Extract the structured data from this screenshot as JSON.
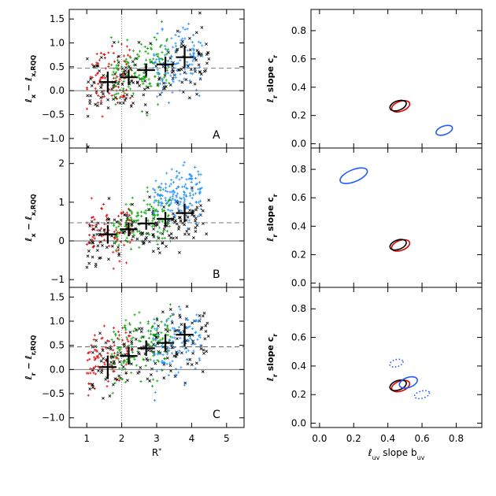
{
  "chart_data": [
    {
      "type": "scatter",
      "panel_label": "A",
      "xlabel": "",
      "ylabel": "ℓx − ℓx,RQQ",
      "ylabel_parts": [
        "ℓ",
        "x",
        " − ℓ",
        "x,RQQ"
      ],
      "xlim": [
        0.5,
        5.5
      ],
      "ylim": [
        -1.2,
        1.7
      ],
      "yticks": [
        -1.0,
        -0.5,
        0.0,
        0.5,
        1.0,
        1.5
      ],
      "ytick_labels": [
        "−1.0",
        "−0.5",
        "0.0",
        "0.5",
        "1.0",
        "1.5"
      ],
      "xticks": [
        1,
        2,
        3,
        4,
        5
      ],
      "vline_dotted": 2.0,
      "hline_dashed": 0.47,
      "hline_solid": 0.0,
      "binned_means": {
        "x": [
          1.6,
          2.2,
          2.7,
          3.25,
          3.8
        ],
        "y": [
          0.18,
          0.28,
          0.43,
          0.55,
          0.7
        ],
        "xerr": [
          0.25,
          0.25,
          0.25,
          0.25,
          0.25
        ],
        "yerr": [
          0.22,
          0.16,
          0.14,
          0.16,
          0.22
        ]
      },
      "scatter_groups": [
        {
          "name": "red",
          "color": "#e00000",
          "x_range": [
            1.0,
            2.3
          ],
          "y_center": 0.3,
          "count": 90
        },
        {
          "name": "black",
          "color": "#000000",
          "x_range": [
            1.0,
            4.5
          ],
          "y_center": 0.35,
          "count": 160
        },
        {
          "name": "green",
          "color": "#00aa00",
          "x_range": [
            1.7,
            3.4
          ],
          "y_center": 0.4,
          "count": 130
        },
        {
          "name": "cyan",
          "color": "#1e90ff",
          "x_range": [
            2.9,
            4.3
          ],
          "y_center": 0.6,
          "count": 110
        }
      ]
    },
    {
      "type": "scatter",
      "panel_label": "B",
      "xlabel": "",
      "ylabel": "ℓx − ℓx,RQQ",
      "ylabel_parts": [
        "ℓ",
        "x",
        " − ℓ",
        "x,RQQ"
      ],
      "xlim": [
        0.5,
        5.5
      ],
      "ylim": [
        -1.2,
        2.4
      ],
      "yticks": [
        -1,
        0,
        1,
        2
      ],
      "ytick_labels": [
        "−1",
        "0",
        "1",
        "2"
      ],
      "xticks": [
        1,
        2,
        3,
        4,
        5
      ],
      "vline_dotted": 2.0,
      "hline_dashed": 0.47,
      "hline_solid": 0.0,
      "binned_means": {
        "x": [
          1.6,
          2.2,
          2.7,
          3.25,
          3.8
        ],
        "y": [
          0.17,
          0.3,
          0.45,
          0.57,
          0.72
        ],
        "xerr": [
          0.25,
          0.25,
          0.25,
          0.25,
          0.25
        ],
        "yerr": [
          0.24,
          0.18,
          0.16,
          0.18,
          0.24
        ]
      },
      "scatter_groups": [
        {
          "name": "red",
          "color": "#e00000",
          "x_range": [
            1.0,
            2.3
          ],
          "y_center": 0.2,
          "count": 90
        },
        {
          "name": "black",
          "color": "#000000",
          "x_range": [
            1.0,
            4.5
          ],
          "y_center": 0.3,
          "count": 160
        },
        {
          "name": "green",
          "color": "#00aa00",
          "x_range": [
            1.7,
            3.4
          ],
          "y_center": 0.5,
          "count": 130
        },
        {
          "name": "cyan",
          "color": "#1e90ff",
          "x_range": [
            2.9,
            4.3
          ],
          "y_center": 1.2,
          "count": 150
        }
      ]
    },
    {
      "type": "scatter",
      "panel_label": "C",
      "xlabel": "R*",
      "xlabel_parts": [
        "R",
        "*"
      ],
      "ylabel": "ℓr − ℓr,RQQ",
      "ylabel_parts": [
        "ℓ",
        "r",
        " − ℓ",
        "r,RQQ"
      ],
      "xlim": [
        0.5,
        5.5
      ],
      "ylim": [
        -1.2,
        1.7
      ],
      "yticks": [
        -1.0,
        -0.5,
        0.0,
        0.5,
        1.0,
        1.5
      ],
      "ytick_labels": [
        "−1.0",
        "−0.5",
        "0.0",
        "0.5",
        "1.0",
        "1.5"
      ],
      "xticks": [
        1,
        2,
        3,
        4,
        5
      ],
      "xtick_labels": [
        "1",
        "2",
        "3",
        "4",
        "5"
      ],
      "vline_dotted": 2.0,
      "hline_dashed": 0.47,
      "hline_solid": 0.0,
      "binned_means": {
        "x": [
          1.6,
          2.2,
          2.7,
          3.25,
          3.8
        ],
        "y": [
          0.05,
          0.28,
          0.44,
          0.55,
          0.72
        ],
        "xerr": [
          0.25,
          0.25,
          0.25,
          0.25,
          0.25
        ],
        "yerr": [
          0.24,
          0.18,
          0.16,
          0.18,
          0.24
        ]
      },
      "scatter_groups": [
        {
          "name": "red",
          "color": "#e00000",
          "x_range": [
            1.0,
            2.3
          ],
          "y_center": 0.2,
          "count": 90
        },
        {
          "name": "black",
          "color": "#000000",
          "x_range": [
            1.0,
            4.5
          ],
          "y_center": 0.35,
          "count": 160
        },
        {
          "name": "green",
          "color": "#00aa00",
          "x_range": [
            1.7,
            3.4
          ],
          "y_center": 0.45,
          "count": 130
        },
        {
          "name": "cyan",
          "color": "#1e90ff",
          "x_range": [
            2.9,
            4.3
          ],
          "y_center": 0.6,
          "count": 110
        }
      ]
    },
    {
      "type": "scatter",
      "panel_label": "",
      "xlabel": "",
      "ylabel": "ℓr slope cr",
      "ylabel_parts": [
        "ℓ",
        "r",
        " slope c",
        "r"
      ],
      "xlim": [
        -0.05,
        0.95
      ],
      "ylim": [
        -0.03,
        0.95
      ],
      "yticks": [
        0.0,
        0.2,
        0.4,
        0.6,
        0.8
      ],
      "ytick_labels": [
        "0.0",
        "0.2",
        "0.4",
        "0.6",
        "0.8"
      ],
      "xticks": [
        0.0,
        0.2,
        0.4,
        0.6,
        0.8
      ],
      "ellipses": [
        {
          "cx": 0.475,
          "cy": 0.265,
          "rx": 0.055,
          "ry": 0.035,
          "angle": -20,
          "color": "#e00000",
          "style": "solid"
        },
        {
          "cx": 0.46,
          "cy": 0.27,
          "rx": 0.05,
          "ry": 0.033,
          "angle": -20,
          "color": "#000000",
          "style": "solid"
        },
        {
          "cx": 0.73,
          "cy": 0.095,
          "rx": 0.05,
          "ry": 0.03,
          "angle": -20,
          "color": "#1e5aff",
          "style": "solid"
        }
      ]
    },
    {
      "type": "scatter",
      "panel_label": "",
      "xlabel": "",
      "ylabel": "ℓr slope cr",
      "ylabel_parts": [
        "ℓ",
        "r",
        " slope c",
        "r"
      ],
      "xlim": [
        -0.05,
        0.95
      ],
      "ylim": [
        -0.03,
        0.95
      ],
      "yticks": [
        0.0,
        0.2,
        0.4,
        0.6,
        0.8
      ],
      "ytick_labels": [
        "0.0",
        "0.2",
        "0.4",
        "0.6",
        "0.8"
      ],
      "xticks": [
        0.0,
        0.2,
        0.4,
        0.6,
        0.8
      ],
      "ellipses": [
        {
          "cx": 0.475,
          "cy": 0.265,
          "rx": 0.055,
          "ry": 0.035,
          "angle": -20,
          "color": "#e00000",
          "style": "solid"
        },
        {
          "cx": 0.46,
          "cy": 0.27,
          "rx": 0.05,
          "ry": 0.033,
          "angle": -20,
          "color": "#000000",
          "style": "solid"
        },
        {
          "cx": 0.2,
          "cy": 0.755,
          "rx": 0.085,
          "ry": 0.042,
          "angle": -22,
          "color": "#1e5aff",
          "style": "solid"
        }
      ]
    },
    {
      "type": "scatter",
      "panel_label": "",
      "xlabel": "ℓuv slope buv",
      "xlabel_parts": [
        "ℓ",
        "uv",
        " slope b",
        "uv"
      ],
      "ylabel": "ℓr slope cr",
      "ylabel_parts": [
        "ℓ",
        "r",
        " slope c",
        "r"
      ],
      "xlim": [
        -0.05,
        0.95
      ],
      "ylim": [
        -0.03,
        0.95
      ],
      "yticks": [
        0.0,
        0.2,
        0.4,
        0.6,
        0.8
      ],
      "ytick_labels": [
        "0.0",
        "0.2",
        "0.4",
        "0.6",
        "0.8"
      ],
      "xticks": [
        0.0,
        0.2,
        0.4,
        0.6,
        0.8
      ],
      "xtick_labels": [
        "0.0",
        "0.2",
        "0.4",
        "0.6",
        "0.8"
      ],
      "ellipses": [
        {
          "cx": 0.475,
          "cy": 0.26,
          "rx": 0.055,
          "ry": 0.035,
          "angle": -20,
          "color": "#e00000",
          "style": "solid"
        },
        {
          "cx": 0.46,
          "cy": 0.265,
          "rx": 0.05,
          "ry": 0.033,
          "angle": -20,
          "color": "#000000",
          "style": "solid"
        },
        {
          "cx": 0.52,
          "cy": 0.285,
          "rx": 0.055,
          "ry": 0.035,
          "angle": -20,
          "color": "#1e5aff",
          "style": "solid"
        },
        {
          "cx": 0.45,
          "cy": 0.42,
          "rx": 0.04,
          "ry": 0.025,
          "angle": -15,
          "color": "#1e5aff",
          "style": "dotted"
        },
        {
          "cx": 0.6,
          "cy": 0.2,
          "rx": 0.045,
          "ry": 0.025,
          "angle": -15,
          "color": "#1e5aff",
          "style": "dotted"
        }
      ]
    }
  ]
}
